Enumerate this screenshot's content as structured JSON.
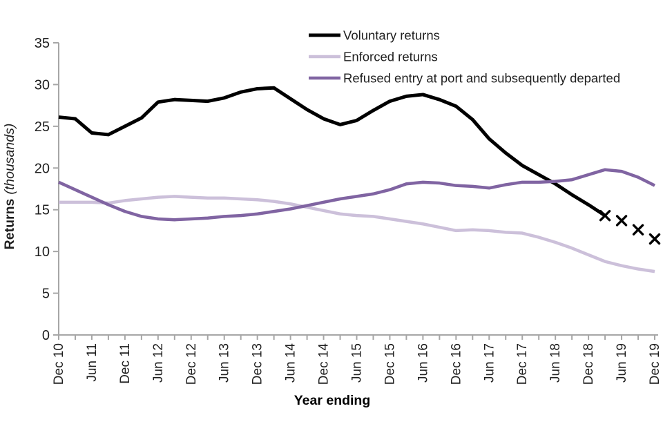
{
  "chart_data": {
    "type": "line",
    "title": "",
    "xlabel": "Year ending",
    "ylabel_bold": "Returns",
    "ylabel_italic": "(thousands)",
    "ylim": [
      0,
      35
    ],
    "yticks": [
      0,
      5,
      10,
      15,
      20,
      25,
      30,
      35
    ],
    "grid": false,
    "legend_position": "top-inside",
    "axis_color": "#a6a6a6",
    "text_color": "#1f1f1f",
    "x_label_every": 2,
    "categories": [
      "Dec 10",
      "Mar 11",
      "Jun 11",
      "Sep 11",
      "Dec 11",
      "Mar 12",
      "Jun 12",
      "Sep 12",
      "Dec 12",
      "Mar 13",
      "Jun 13",
      "Sep 13",
      "Dec 13",
      "Mar 14",
      "Jun 14",
      "Sep 14",
      "Dec 14",
      "Mar 15",
      "Jun 15",
      "Sep 15",
      "Dec 15",
      "Mar 16",
      "Jun 16",
      "Sep 16",
      "Dec 16",
      "Mar 17",
      "Jun 17",
      "Sep 17",
      "Dec 17",
      "Mar 18",
      "Jun 18",
      "Sep 18",
      "Dec 18",
      "Mar 19",
      "Jun 19",
      "Sep 19",
      "Dec 19"
    ],
    "series": [
      {
        "name": "Voluntary returns",
        "color": "#000000",
        "width": 5,
        "values": [
          26.1,
          25.9,
          24.2,
          24.0,
          25.0,
          26.0,
          27.9,
          28.2,
          28.1,
          28.0,
          28.4,
          29.1,
          29.5,
          29.6,
          28.3,
          27.0,
          25.9,
          25.2,
          25.7,
          26.9,
          28.0,
          28.6,
          28.8,
          28.2,
          27.4,
          25.8,
          23.5,
          21.8,
          20.3,
          19.2,
          18.1,
          16.8,
          15.6,
          14.3
        ],
        "provisional_markers": [
          {
            "category": "Mar 19",
            "value": 14.3
          },
          {
            "category": "Jun 19",
            "value": 13.7
          },
          {
            "category": "Sep 19",
            "value": 12.6
          },
          {
            "category": "Dec 19",
            "value": 11.5
          }
        ]
      },
      {
        "name": "Enforced returns",
        "color": "#ccc0da",
        "width": 4.5,
        "values": [
          15.9,
          15.9,
          15.9,
          15.8,
          16.1,
          16.3,
          16.5,
          16.6,
          16.5,
          16.4,
          16.4,
          16.3,
          16.2,
          16.0,
          15.7,
          15.3,
          14.9,
          14.5,
          14.3,
          14.2,
          13.9,
          13.6,
          13.3,
          12.9,
          12.5,
          12.6,
          12.5,
          12.3,
          12.2,
          11.7,
          11.1,
          10.4,
          9.6,
          8.8,
          8.3,
          7.9,
          7.6
        ]
      },
      {
        "name": "Refused entry at port and subsequently departed",
        "color": "#8064a2",
        "width": 4.5,
        "values": [
          18.3,
          17.4,
          16.5,
          15.6,
          14.8,
          14.2,
          13.9,
          13.8,
          13.9,
          14.0,
          14.2,
          14.3,
          14.5,
          14.8,
          15.1,
          15.5,
          15.9,
          16.3,
          16.6,
          16.9,
          17.4,
          18.1,
          18.3,
          18.2,
          17.9,
          17.8,
          17.6,
          18.0,
          18.3,
          18.3,
          18.4,
          18.6,
          19.2,
          19.8,
          19.6,
          18.9,
          17.9
        ]
      }
    ]
  }
}
